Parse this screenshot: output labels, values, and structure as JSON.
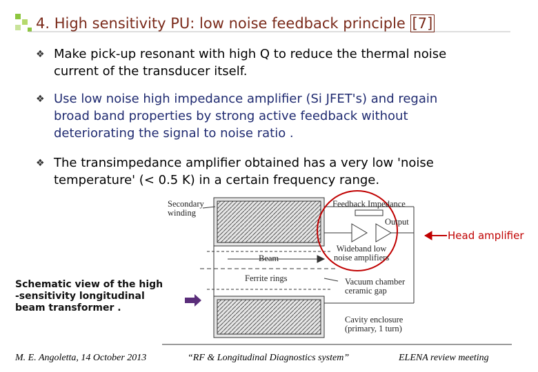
{
  "header": {
    "title": "4. High sensitivity PU: low noise feedback principle",
    "reference": "[7]"
  },
  "bullets": [
    {
      "lines": [
        "Make pick-up resonant with high Q to reduce the thermal noise",
        "current of the transducer itself."
      ]
    },
    {
      "lines": [
        "Use low noise high impedance amplifier (Si JFET's) and regain",
        "broad band properties by strong active feedback without",
        "deteriorating the signal to noise ratio ."
      ]
    },
    {
      "lines": [
        "The transimpedance amplifier obtained  has a very low 'noise",
        "temperature' (< 0.5 K) in a certain frequency range."
      ]
    }
  ],
  "diagram": {
    "labels": {
      "secondary_winding": [
        "Secondary",
        "winding"
      ],
      "feedback_impedance": "Feedback Impedance",
      "output": "Output",
      "amplifiers": [
        "Wideband low",
        "noise amplifiers"
      ],
      "beam": "Beam",
      "ferrite_rings": "Ferrite rings",
      "vacuum_chamber": [
        "Vacuum chamber",
        "ceramic gap"
      ],
      "cavity": [
        "Cavity enclosure",
        "(primary, 1 turn)"
      ]
    },
    "head_amplifier": "Head amplifier",
    "caption": [
      "Schematic view of the high",
      "-sensitivity longitudinal",
      "beam transformer ."
    ]
  },
  "footer": {
    "author": "M. E. Angoletta, 14 October 2013",
    "talk": "“RF & Longitudinal Diagnostics system”",
    "meeting": "ELENA review meeting"
  }
}
